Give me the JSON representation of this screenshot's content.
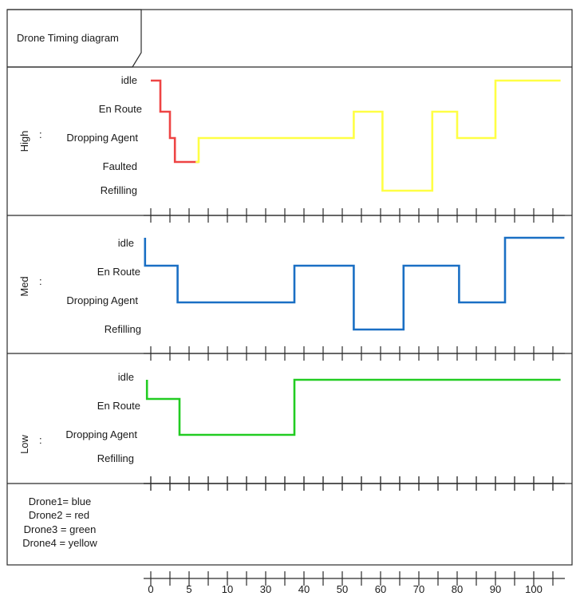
{
  "title": "Drone Timing diagram",
  "time_axis": {
    "tick_labels": [
      "0",
      "5",
      "10",
      "30",
      "40",
      "50",
      "60",
      "70",
      "80",
      "90",
      "100"
    ]
  },
  "lanes": [
    {
      "id": "high",
      "name": "High",
      "colon": ":",
      "states": [
        "idle",
        "En Route",
        "Dropping Agent",
        "Faulted",
        "Refilling"
      ],
      "signals": [
        {
          "label": "Drone2",
          "color": "#ee4444",
          "steps": [
            [
              "idle",
              0
            ],
            [
              "En Route",
              2.5
            ],
            [
              "Dropping Agent",
              5
            ],
            [
              "Faulted",
              6.3
            ],
            [
              "Faulted",
              12.5
            ]
          ]
        },
        {
          "label": "Drone4",
          "color": "#ffff44",
          "steps": [
            [
              "Faulted",
              11.7
            ],
            [
              "Dropping Agent",
              12.5
            ],
            [
              "En Route",
              53
            ],
            [
              "Refilling",
              60.5
            ],
            [
              "En Route",
              73.5
            ],
            [
              "Dropping Agent",
              80
            ],
            [
              "idle",
              90
            ],
            [
              "idle",
              107
            ]
          ]
        }
      ]
    },
    {
      "id": "med",
      "name": "Med",
      "colon": ":",
      "states": [
        "idle",
        "En Route",
        "Dropping Agent",
        "Refilling"
      ],
      "signals": [
        {
          "label": "Drone1",
          "color": "#1a6fc4",
          "steps": [
            [
              "idle",
              -1.5
            ],
            [
              "En Route",
              -1.5
            ],
            [
              "Dropping Agent",
              7
            ],
            [
              "En Route",
              37.5
            ],
            [
              "Refilling",
              53
            ],
            [
              "En Route",
              66
            ],
            [
              "Dropping Agent",
              80.5
            ],
            [
              "idle",
              92.5
            ],
            [
              "idle",
              108
            ]
          ]
        }
      ]
    },
    {
      "id": "low",
      "name": "Low",
      "colon": ":",
      "states": [
        "idle",
        "En Route",
        "Dropping Agent",
        "Refilling"
      ],
      "signals": [
        {
          "label": "Drone3",
          "color": "#22cc22",
          "steps": [
            [
              "idle",
              -1
            ],
            [
              "En Route",
              -1
            ],
            [
              "Dropping Agent",
              7.5
            ],
            [
              "idle",
              37.5
            ],
            [
              "idle",
              107
            ]
          ]
        }
      ]
    }
  ],
  "legend": [
    "Drone1= blue",
    "Drone2 = red",
    "Drone3 = green",
    "Drone4 = yellow"
  ]
}
